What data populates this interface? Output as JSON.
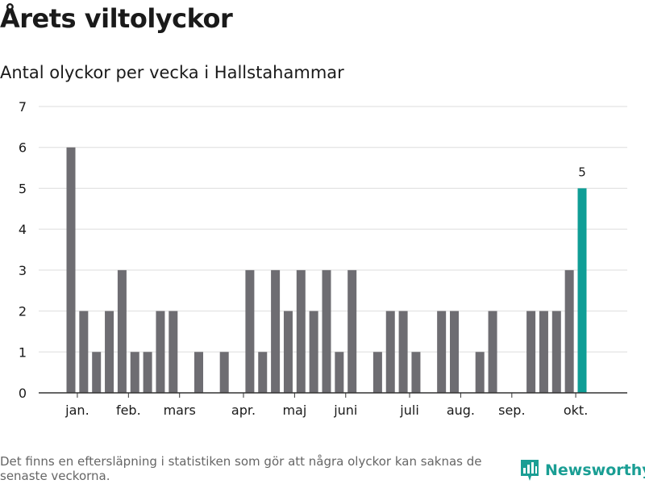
{
  "title": "Årets viltolyckor",
  "subtitle": "Antal olyckor per vecka i Hallstahammar",
  "footnote": "Det finns en eftersläpning i statistiken som gör att några olyckor kan saknas de senaste veckorna.",
  "brand": {
    "name": "Newsworthy",
    "icon": "newsworthy-logo-icon"
  },
  "colors": {
    "bar": "#6e6d72",
    "highlight": "#0f9e96",
    "grid": "#dddddd",
    "axis": "#333333"
  },
  "chart_data": {
    "type": "bar",
    "title": "Årets viltolyckor",
    "subtitle": "Antal olyckor per vecka i Hallstahammar",
    "xlabel": "",
    "ylabel": "",
    "ylim": [
      0,
      7
    ],
    "yticks": [
      0,
      1,
      2,
      3,
      4,
      5,
      6,
      7
    ],
    "grid": true,
    "weeks": [
      1,
      2,
      3,
      4,
      5,
      6,
      7,
      8,
      9,
      10,
      11,
      12,
      13,
      14,
      15,
      16,
      17,
      18,
      19,
      20,
      21,
      22,
      23,
      24,
      25,
      26,
      27,
      28,
      29,
      30,
      31,
      32,
      33,
      34,
      35,
      36,
      37,
      38,
      39,
      40,
      41
    ],
    "values": [
      6,
      2,
      1,
      2,
      3,
      1,
      1,
      2,
      2,
      0,
      1,
      0,
      1,
      0,
      3,
      1,
      3,
      2,
      3,
      2,
      3,
      1,
      3,
      0,
      1,
      2,
      2,
      1,
      0,
      2,
      2,
      0,
      1,
      2,
      0,
      0,
      2,
      2,
      2,
      3,
      5
    ],
    "highlight_week": 41,
    "highlight_label": "5",
    "month_ticks": [
      {
        "label": "jan.",
        "week": 1.5
      },
      {
        "label": "feb.",
        "week": 5.5
      },
      {
        "label": "mars",
        "week": 9.5
      },
      {
        "label": "apr.",
        "week": 14.5
      },
      {
        "label": "maj",
        "week": 18.5
      },
      {
        "label": "juni",
        "week": 22.5
      },
      {
        "label": "juli",
        "week": 27.5
      },
      {
        "label": "aug.",
        "week": 31.5
      },
      {
        "label": "sep.",
        "week": 35.5
      },
      {
        "label": "okt.",
        "week": 40.5
      }
    ]
  }
}
